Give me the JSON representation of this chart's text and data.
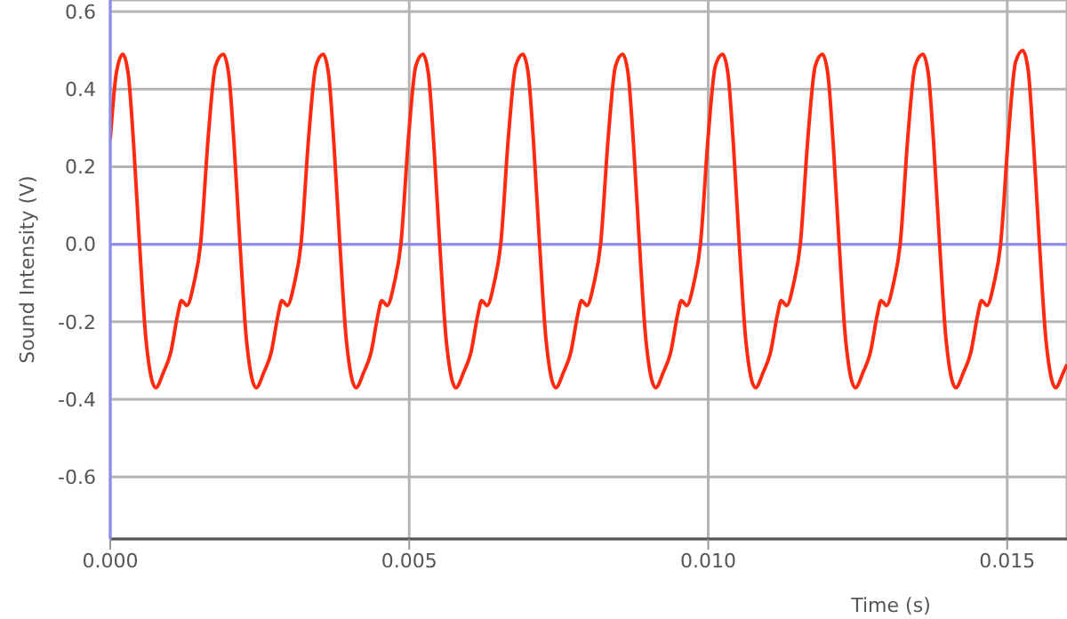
{
  "chart_data": {
    "type": "line",
    "xlabel": "Time (s)",
    "ylabel": "Sound Intensity (V)",
    "xlim": [
      0,
      0.016
    ],
    "xticks": [
      {
        "value": 0,
        "label": "0.000"
      },
      {
        "value": 0.005,
        "label": "0.005"
      },
      {
        "value": 0.01,
        "label": "0.010"
      },
      {
        "value": 0.015,
        "label": "0.015"
      }
    ],
    "ylim": [
      -0.76,
      0.63
    ],
    "yticks": [
      {
        "value": -0.6,
        "label": "-0.6"
      },
      {
        "value": -0.4,
        "label": "-0.4"
      },
      {
        "value": -0.2,
        "label": "-0.2"
      },
      {
        "value": 0,
        "label": "0.0"
      },
      {
        "value": 0.2,
        "label": "0.2"
      },
      {
        "value": 0.4,
        "label": "0.4"
      },
      {
        "value": 0.6,
        "label": "0.6"
      }
    ],
    "grid": true,
    "marker": "none",
    "line_style": "solid",
    "ref_lines": [
      {
        "axis": "y",
        "value": 0,
        "label": null,
        "color": "#8c8cf0"
      }
    ],
    "series": [
      {
        "color": "#ff2a10",
        "x": [
          0,
          0.0001,
          0.00021,
          0.0003,
          0.00039,
          0.00049,
          0.0006,
          0.00076,
          0.00089,
          0.00101,
          0.00113,
          0.00119,
          0.00128,
          0.0014,
          0.00151,
          0.00164,
          0.00176,
          0.00189,
          0.00198,
          0.00207,
          0.00217,
          0.00228,
          0.00244,
          0.00257,
          0.00269,
          0.00281,
          0.00287,
          0.00296,
          0.00308,
          0.00319,
          0.00332,
          0.00344,
          0.00356,
          0.00365,
          0.00374,
          0.00384,
          0.00395,
          0.00411,
          0.00424,
          0.00436,
          0.00448,
          0.00454,
          0.00463,
          0.00475,
          0.00486,
          0.00499,
          0.00511,
          0.00523,
          0.00532,
          0.00541,
          0.00551,
          0.00562,
          0.00578,
          0.00591,
          0.00603,
          0.00615,
          0.00621,
          0.0063,
          0.00642,
          0.00653,
          0.00666,
          0.00678,
          0.0069,
          0.00699,
          0.00708,
          0.00718,
          0.00729,
          0.00745,
          0.00758,
          0.0077,
          0.00782,
          0.00788,
          0.00797,
          0.00809,
          0.0082,
          0.00833,
          0.00845,
          0.00857,
          0.00866,
          0.00875,
          0.00885,
          0.00896,
          0.00912,
          0.00925,
          0.00937,
          0.00949,
          0.00955,
          0.00964,
          0.00976,
          0.00987,
          0.01,
          0.01012,
          0.01024,
          0.01033,
          0.01042,
          0.01052,
          0.01063,
          0.01079,
          0.01092,
          0.01104,
          0.01116,
          0.01122,
          0.01131,
          0.01143,
          0.01154,
          0.01167,
          0.01179,
          0.01191,
          0.012,
          0.01209,
          0.01219,
          0.0123,
          0.01246,
          0.01259,
          0.01271,
          0.01283,
          0.01289,
          0.01298,
          0.0131,
          0.01321,
          0.01334,
          0.01346,
          0.01359,
          0.01368,
          0.01377,
          0.01387,
          0.01398,
          0.01414,
          0.01427,
          0.01439,
          0.01451,
          0.01457,
          0.01466,
          0.01478,
          0.01489,
          0.01502,
          0.01514,
          0.01526,
          0.01535,
          0.01544,
          0.01554,
          0.01565,
          0.01581,
          0.01594,
          0.016
        ],
        "values": [
          0.27,
          0.44,
          0.49,
          0.44,
          0.26,
          0,
          -0.25,
          -0.37,
          -0.33,
          -0.28,
          -0.18,
          -0.145,
          -0.158,
          -0.1,
          0,
          0.28,
          0.46,
          0.49,
          0.44,
          0.26,
          0,
          -0.25,
          -0.37,
          -0.33,
          -0.28,
          -0.18,
          -0.145,
          -0.158,
          -0.1,
          0,
          0.28,
          0.46,
          0.49,
          0.44,
          0.26,
          0,
          -0.25,
          -0.37,
          -0.33,
          -0.28,
          -0.18,
          -0.145,
          -0.158,
          -0.1,
          0,
          0.28,
          0.46,
          0.49,
          0.44,
          0.26,
          0,
          -0.25,
          -0.37,
          -0.33,
          -0.28,
          -0.18,
          -0.145,
          -0.158,
          -0.1,
          0,
          0.28,
          0.46,
          0.49,
          0.44,
          0.26,
          0,
          -0.25,
          -0.37,
          -0.33,
          -0.28,
          -0.18,
          -0.145,
          -0.158,
          -0.1,
          0,
          0.28,
          0.46,
          0.49,
          0.44,
          0.26,
          0,
          -0.25,
          -0.37,
          -0.33,
          -0.28,
          -0.18,
          -0.145,
          -0.158,
          -0.1,
          0,
          0.28,
          0.46,
          0.49,
          0.44,
          0.26,
          0,
          -0.25,
          -0.37,
          -0.33,
          -0.28,
          -0.18,
          -0.145,
          -0.158,
          -0.1,
          0,
          0.28,
          0.46,
          0.49,
          0.44,
          0.26,
          0,
          -0.25,
          -0.37,
          -0.33,
          -0.28,
          -0.18,
          -0.145,
          -0.158,
          -0.1,
          0,
          0.28,
          0.46,
          0.49,
          0.44,
          0.26,
          0,
          -0.25,
          -0.37,
          -0.33,
          -0.28,
          -0.18,
          -0.145,
          -0.158,
          -0.1,
          0,
          0.28,
          0.47,
          0.5,
          0.45,
          0.26,
          0,
          -0.25,
          -0.37,
          -0.33,
          -0.31
        ]
      }
    ]
  }
}
